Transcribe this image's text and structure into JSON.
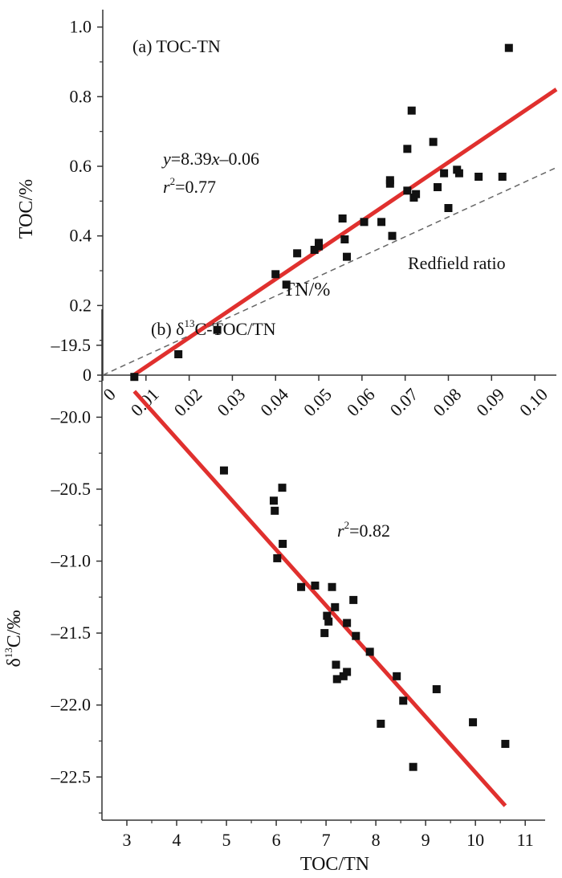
{
  "colors": {
    "axis": "#333333",
    "marker": "#111111",
    "fit_line": "#e0302e",
    "reference_line": "#666666",
    "background": "#ffffff"
  },
  "chart_data": [
    {
      "type": "scatter",
      "title": "(a) TOC-TN",
      "xlabel": "TN/%",
      "ylabel": "TOC/%",
      "xlim": [
        0,
        0.105
      ],
      "ylim": [
        0,
        1.05
      ],
      "x_ticks": [
        "0",
        "0.01",
        "0.02",
        "0.03",
        "0.04",
        "0.05",
        "0.06",
        "0.07",
        "0.08",
        "0.09",
        "0.10"
      ],
      "y_ticks": [
        "0",
        "0.2",
        "0.4",
        "0.6",
        "0.8",
        "1.0"
      ],
      "grid": false,
      "series": [
        {
          "points": [
            [
              0.0175,
              0.06
            ],
            [
              0.0265,
              0.13
            ],
            [
              0.04,
              0.29
            ],
            [
              0.0425,
              0.26
            ],
            [
              0.045,
              0.35
            ],
            [
              0.049,
              0.36
            ],
            [
              0.05,
              0.38
            ],
            [
              0.05,
              0.37
            ],
            [
              0.0555,
              0.45
            ],
            [
              0.056,
              0.39
            ],
            [
              0.0565,
              0.34
            ],
            [
              0.0605,
              0.44
            ],
            [
              0.0645,
              0.44
            ],
            [
              0.0665,
              0.56
            ],
            [
              0.0665,
              0.55
            ],
            [
              0.067,
              0.4
            ],
            [
              0.0705,
              0.65
            ],
            [
              0.0705,
              0.53
            ],
            [
              0.0715,
              0.76
            ],
            [
              0.072,
              0.51
            ],
            [
              0.0725,
              0.52
            ],
            [
              0.0765,
              0.67
            ],
            [
              0.0775,
              0.54
            ],
            [
              0.079,
              0.58
            ],
            [
              0.08,
              0.48
            ],
            [
              0.082,
              0.59
            ],
            [
              0.0825,
              0.58
            ],
            [
              0.087,
              0.57
            ],
            [
              0.0925,
              0.57
            ],
            [
              0.094,
              0.94
            ]
          ]
        }
      ],
      "fit": {
        "slope": 8.39,
        "intercept": -0.06,
        "x_range": [
          0.0072,
          0.105
        ]
      },
      "reference": {
        "label": "Redfield ratio",
        "slope": 5.68,
        "intercept": 0,
        "x_range": [
          0,
          0.105
        ]
      },
      "equation_label": {
        "y": "y",
        "eq": "=8.39",
        "x": "x",
        "rest": "–0.06"
      },
      "r2_label": {
        "r": "r",
        "sup": "2",
        "rest": "=0.77"
      }
    },
    {
      "type": "scatter",
      "title": {
        "prefix": "(b) δ",
        "sup": "13",
        "suffix": "C-TOC/TN"
      },
      "xlabel": "TOC/TN",
      "ylabel": {
        "prefix": "δ",
        "sup": "13",
        "suffix": "C/‰"
      },
      "xlim": [
        2.5,
        11.4
      ],
      "ylim": [
        -22.8,
        -19.25
      ],
      "x_ticks": [
        "3",
        "4",
        "5",
        "6",
        "7",
        "8",
        "9",
        "10",
        "11"
      ],
      "y_ticks": [
        "–19.5",
        "–20.0",
        "–20.5",
        "–21.0",
        "–21.5",
        "–22.0",
        "–22.5"
      ],
      "grid": false,
      "series": [
        {
          "points": [
            [
              3.15,
              -19.72
            ],
            [
              4.95,
              -20.37
            ],
            [
              5.95,
              -20.58
            ],
            [
              5.97,
              -20.65
            ],
            [
              6.02,
              -20.98
            ],
            [
              6.12,
              -20.49
            ],
            [
              6.13,
              -20.88
            ],
            [
              6.5,
              -21.18
            ],
            [
              6.78,
              -21.17
            ],
            [
              6.97,
              -21.5
            ],
            [
              7.02,
              -21.38
            ],
            [
              7.05,
              -21.42
            ],
            [
              7.12,
              -21.18
            ],
            [
              7.18,
              -21.32
            ],
            [
              7.2,
              -21.72
            ],
            [
              7.22,
              -21.82
            ],
            [
              7.35,
              -21.8
            ],
            [
              7.42,
              -21.77
            ],
            [
              7.42,
              -21.43
            ],
            [
              7.55,
              -21.27
            ],
            [
              7.6,
              -21.52
            ],
            [
              7.88,
              -21.63
            ],
            [
              8.1,
              -22.13
            ],
            [
              8.42,
              -21.8
            ],
            [
              8.55,
              -21.97
            ],
            [
              8.75,
              -22.43
            ],
            [
              9.22,
              -21.89
            ],
            [
              9.95,
              -22.12
            ],
            [
              10.6,
              -22.27
            ]
          ]
        }
      ],
      "fit": {
        "x_range": [
          3.15,
          10.6
        ],
        "y_range": [
          -19.82,
          -22.7
        ]
      },
      "r2_label": {
        "r": "r",
        "sup": "2",
        "rest": "=0.82"
      }
    }
  ]
}
